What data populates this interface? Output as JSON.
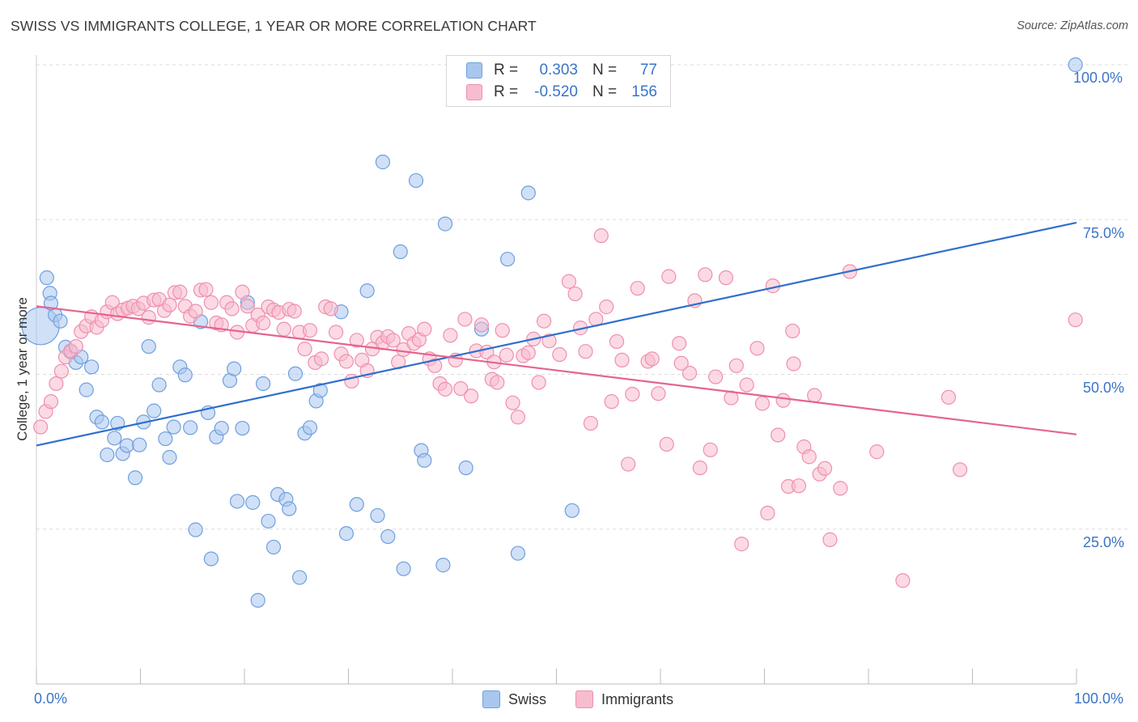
{
  "title": "SWISS VS IMMIGRANTS COLLEGE, 1 YEAR OR MORE CORRELATION CHART",
  "source": "Source: ZipAtlas.com",
  "legend": {
    "swiss": {
      "r_label": "R =",
      "r_value": "0.303",
      "n_label": "N =",
      "n_value": "77"
    },
    "immigrants": {
      "r_label": "R =",
      "r_value": "-0.520",
      "n_label": "N =",
      "n_value": "156"
    }
  },
  "bottom_legend": {
    "swiss": "Swiss",
    "immigrants": "Immigrants"
  },
  "x_tick_labels": {
    "left": "0.0%",
    "right": "100.0%"
  },
  "y_tick_labels": [
    "100.0%",
    "75.0%",
    "50.0%",
    "25.0%"
  ],
  "colors": {
    "swiss_fill": "#a9c6ee",
    "swiss_stroke": "#6f9fe0",
    "swiss_line": "#2f6fce",
    "immigrants_fill": "#f7bccd",
    "immigrants_stroke": "#ef8fae",
    "immigrants_line": "#e5648f",
    "axis_text": "#3a74c8",
    "grid": "#dcdcdc"
  },
  "chart_data": {
    "type": "scatter",
    "title": "SWISS VS IMMIGRANTS COLLEGE, 1 YEAR OR MORE CORRELATION CHART",
    "xlabel": "",
    "ylabel": "College, 1 year or more",
    "xlim": [
      0,
      100
    ],
    "ylim": [
      0,
      100
    ],
    "y_ticks": [
      25,
      50,
      75,
      100
    ],
    "grid": true,
    "legend_position": "top-center",
    "series": [
      {
        "name": "Swiss",
        "r": 0.303,
        "n": 77,
        "trend": [
          [
            0,
            38.5
          ],
          [
            100,
            74.5
          ]
        ],
        "points": [
          [
            0.4,
            57.8
          ],
          [
            1.0,
            65.6
          ],
          [
            1.3,
            63.1
          ],
          [
            1.8,
            59.6
          ],
          [
            2.3,
            58.6
          ],
          [
            2.8,
            54.4
          ],
          [
            3.3,
            53.6
          ],
          [
            3.8,
            51.9
          ],
          [
            4.3,
            52.8
          ],
          [
            4.8,
            47.5
          ],
          [
            5.3,
            51.2
          ],
          [
            5.8,
            43.1
          ],
          [
            6.3,
            42.3
          ],
          [
            6.8,
            37.0
          ],
          [
            7.5,
            39.7
          ],
          [
            7.8,
            42.1
          ],
          [
            8.3,
            37.2
          ],
          [
            8.7,
            38.5
          ],
          [
            9.5,
            33.3
          ],
          [
            9.9,
            38.6
          ],
          [
            10.3,
            42.3
          ],
          [
            10.8,
            54.5
          ],
          [
            11.3,
            44.1
          ],
          [
            11.8,
            48.3
          ],
          [
            12.4,
            39.6
          ],
          [
            12.8,
            36.6
          ],
          [
            13.2,
            41.5
          ],
          [
            13.8,
            51.2
          ],
          [
            14.3,
            49.9
          ],
          [
            14.8,
            41.4
          ],
          [
            15.3,
            24.9
          ],
          [
            15.8,
            58.5
          ],
          [
            16.5,
            43.8
          ],
          [
            16.8,
            20.2
          ],
          [
            17.3,
            39.9
          ],
          [
            17.8,
            41.3
          ],
          [
            18.6,
            49.0
          ],
          [
            19.0,
            50.9
          ],
          [
            19.3,
            29.5
          ],
          [
            19.8,
            41.3
          ],
          [
            20.3,
            61.6
          ],
          [
            20.8,
            29.3
          ],
          [
            21.3,
            13.5
          ],
          [
            21.8,
            48.5
          ],
          [
            22.3,
            26.3
          ],
          [
            22.8,
            22.1
          ],
          [
            23.2,
            30.6
          ],
          [
            24.0,
            29.8
          ],
          [
            24.3,
            28.3
          ],
          [
            24.9,
            50.1
          ],
          [
            25.3,
            17.2
          ],
          [
            25.8,
            40.5
          ],
          [
            26.3,
            41.4
          ],
          [
            26.9,
            45.7
          ],
          [
            27.3,
            47.4
          ],
          [
            29.3,
            60.1
          ],
          [
            29.8,
            24.3
          ],
          [
            30.8,
            29.0
          ],
          [
            31.8,
            63.5
          ],
          [
            32.8,
            27.2
          ],
          [
            33.3,
            84.3
          ],
          [
            33.8,
            23.8
          ],
          [
            35.0,
            69.8
          ],
          [
            35.3,
            18.6
          ],
          [
            36.5,
            81.3
          ],
          [
            37.0,
            37.7
          ],
          [
            37.3,
            36.1
          ],
          [
            39.1,
            19.2
          ],
          [
            39.3,
            74.3
          ],
          [
            41.3,
            34.9
          ],
          [
            42.8,
            57.3
          ],
          [
            45.3,
            68.6
          ],
          [
            46.3,
            21.1
          ],
          [
            47.3,
            79.3
          ],
          [
            51.5,
            28.0
          ],
          [
            99.9,
            100.0
          ],
          [
            1.4,
            61.5
          ]
        ]
      },
      {
        "name": "Immigrants",
        "r": -0.52,
        "n": 156,
        "trend": [
          [
            0,
            61.0
          ],
          [
            100,
            40.3
          ]
        ],
        "points": [
          [
            0.4,
            41.5
          ],
          [
            0.9,
            44.0
          ],
          [
            1.4,
            45.6
          ],
          [
            1.9,
            48.5
          ],
          [
            2.4,
            50.5
          ],
          [
            2.8,
            52.8
          ],
          [
            3.3,
            53.8
          ],
          [
            3.8,
            54.5
          ],
          [
            4.3,
            56.9
          ],
          [
            4.8,
            57.8
          ],
          [
            5.3,
            59.3
          ],
          [
            5.8,
            57.6
          ],
          [
            6.3,
            58.7
          ],
          [
            6.8,
            60.1
          ],
          [
            7.3,
            61.6
          ],
          [
            7.8,
            59.8
          ],
          [
            8.3,
            60.4
          ],
          [
            8.8,
            60.7
          ],
          [
            9.3,
            61.0
          ],
          [
            9.8,
            60.6
          ],
          [
            10.3,
            61.5
          ],
          [
            10.8,
            59.2
          ],
          [
            11.3,
            62.0
          ],
          [
            11.8,
            62.1
          ],
          [
            12.3,
            60.3
          ],
          [
            12.8,
            61.2
          ],
          [
            13.3,
            63.2
          ],
          [
            13.8,
            63.3
          ],
          [
            14.3,
            61.0
          ],
          [
            14.8,
            59.4
          ],
          [
            15.3,
            60.2
          ],
          [
            15.8,
            63.6
          ],
          [
            16.3,
            63.7
          ],
          [
            16.8,
            61.6
          ],
          [
            17.3,
            58.3
          ],
          [
            17.8,
            58.0
          ],
          [
            18.3,
            61.6
          ],
          [
            18.8,
            60.6
          ],
          [
            19.3,
            56.8
          ],
          [
            19.8,
            63.3
          ],
          [
            20.3,
            61.0
          ],
          [
            20.8,
            57.9
          ],
          [
            21.3,
            59.6
          ],
          [
            21.8,
            58.3
          ],
          [
            22.3,
            60.9
          ],
          [
            22.8,
            60.4
          ],
          [
            23.3,
            60.0
          ],
          [
            23.8,
            57.3
          ],
          [
            24.3,
            60.5
          ],
          [
            24.8,
            60.2
          ],
          [
            25.3,
            56.8
          ],
          [
            25.8,
            54.1
          ],
          [
            26.3,
            57.1
          ],
          [
            26.8,
            51.9
          ],
          [
            27.4,
            52.5
          ],
          [
            27.8,
            60.9
          ],
          [
            28.3,
            60.6
          ],
          [
            28.8,
            56.8
          ],
          [
            29.3,
            53.3
          ],
          [
            29.8,
            52.1
          ],
          [
            30.3,
            48.9
          ],
          [
            30.8,
            55.5
          ],
          [
            31.3,
            52.3
          ],
          [
            31.8,
            50.6
          ],
          [
            32.3,
            54.1
          ],
          [
            32.8,
            56.0
          ],
          [
            33.3,
            55.1
          ],
          [
            33.8,
            56.1
          ],
          [
            34.3,
            55.5
          ],
          [
            34.8,
            52.0
          ],
          [
            35.3,
            54.0
          ],
          [
            35.8,
            56.6
          ],
          [
            36.3,
            55.0
          ],
          [
            36.8,
            55.6
          ],
          [
            37.3,
            57.3
          ],
          [
            37.8,
            52.5
          ],
          [
            38.3,
            51.4
          ],
          [
            38.8,
            48.5
          ],
          [
            39.3,
            47.6
          ],
          [
            39.8,
            56.3
          ],
          [
            40.3,
            52.3
          ],
          [
            40.8,
            47.7
          ],
          [
            41.2,
            58.9
          ],
          [
            41.8,
            46.5
          ],
          [
            42.3,
            53.8
          ],
          [
            42.8,
            58.0
          ],
          [
            43.3,
            53.6
          ],
          [
            43.8,
            49.2
          ],
          [
            44.3,
            48.7
          ],
          [
            44.8,
            57.1
          ],
          [
            45.2,
            53.1
          ],
          [
            45.8,
            45.4
          ],
          [
            46.3,
            43.1
          ],
          [
            46.8,
            53.0
          ],
          [
            47.3,
            53.5
          ],
          [
            47.8,
            55.7
          ],
          [
            48.3,
            48.7
          ],
          [
            48.8,
            58.6
          ],
          [
            49.3,
            55.4
          ],
          [
            50.3,
            53.2
          ],
          [
            51.2,
            65.0
          ],
          [
            51.8,
            63.0
          ],
          [
            52.3,
            57.5
          ],
          [
            52.8,
            53.7
          ],
          [
            53.3,
            42.1
          ],
          [
            53.8,
            58.9
          ],
          [
            54.3,
            72.4
          ],
          [
            54.8,
            60.9
          ],
          [
            55.3,
            45.6
          ],
          [
            55.8,
            55.3
          ],
          [
            56.3,
            52.3
          ],
          [
            56.9,
            35.5
          ],
          [
            57.3,
            46.8
          ],
          [
            57.8,
            63.9
          ],
          [
            58.8,
            52.1
          ],
          [
            59.2,
            52.5
          ],
          [
            59.8,
            46.9
          ],
          [
            60.6,
            38.7
          ],
          [
            60.8,
            65.8
          ],
          [
            61.8,
            55.0
          ],
          [
            62.8,
            50.2
          ],
          [
            63.3,
            61.9
          ],
          [
            63.8,
            34.9
          ],
          [
            64.3,
            66.1
          ],
          [
            64.8,
            37.8
          ],
          [
            65.3,
            49.6
          ],
          [
            66.3,
            65.6
          ],
          [
            66.8,
            46.2
          ],
          [
            67.3,
            51.4
          ],
          [
            67.8,
            22.6
          ],
          [
            68.3,
            48.3
          ],
          [
            69.3,
            54.2
          ],
          [
            69.8,
            45.3
          ],
          [
            70.3,
            27.6
          ],
          [
            70.8,
            64.3
          ],
          [
            71.3,
            40.2
          ],
          [
            71.8,
            45.8
          ],
          [
            72.3,
            31.9
          ],
          [
            72.8,
            51.7
          ],
          [
            73.3,
            32.0
          ],
          [
            73.8,
            38.3
          ],
          [
            74.3,
            36.7
          ],
          [
            74.8,
            46.6
          ],
          [
            75.3,
            33.9
          ],
          [
            75.8,
            34.8
          ],
          [
            76.3,
            23.3
          ],
          [
            77.3,
            31.6
          ],
          [
            78.2,
            66.6
          ],
          [
            80.8,
            37.5
          ],
          [
            83.3,
            16.7
          ],
          [
            87.7,
            46.3
          ],
          [
            88.8,
            34.6
          ],
          [
            99.9,
            58.8
          ],
          [
            72.7,
            57.0
          ],
          [
            62.0,
            51.8
          ],
          [
            44.0,
            52.0
          ]
        ]
      }
    ]
  }
}
